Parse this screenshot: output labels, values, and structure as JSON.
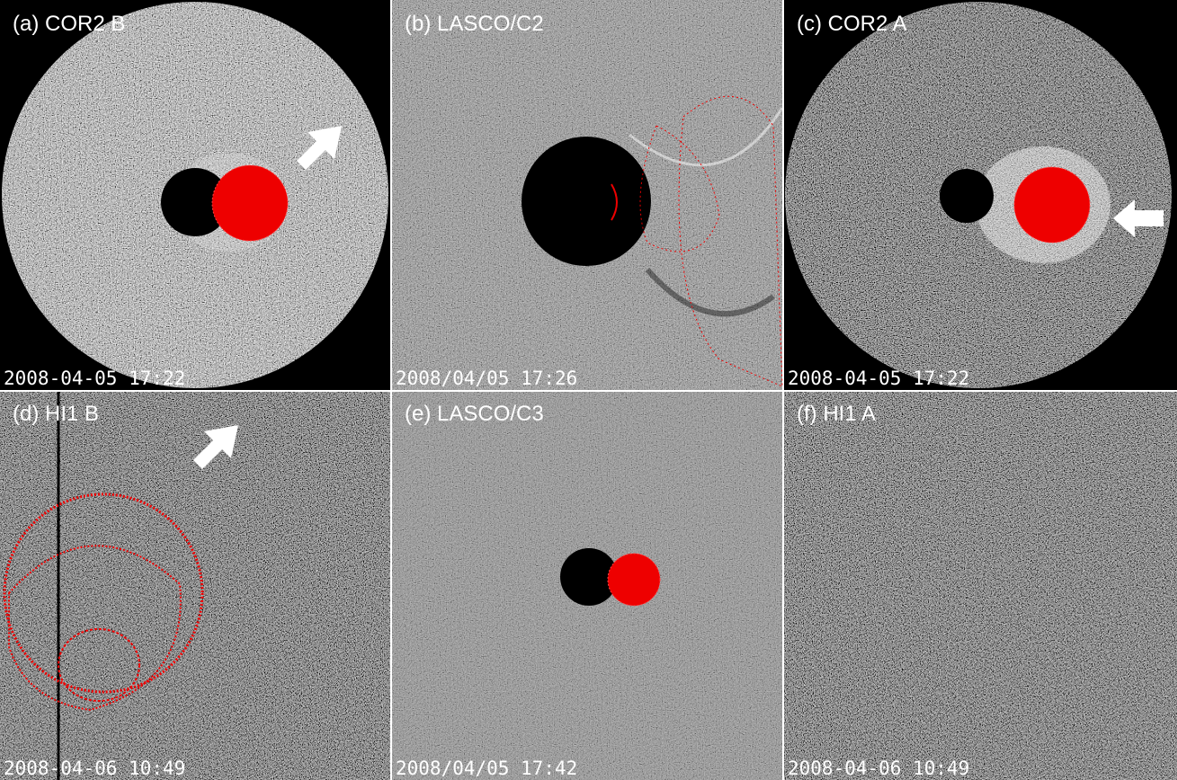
{
  "panels": [
    {
      "label": "(a) COR2 B",
      "timestamp": "2008-04-05 17:22"
    },
    {
      "label": "(b) LASCO/C2",
      "timestamp": "2008/04/05 17:26"
    },
    {
      "label": "(c) COR2 A",
      "timestamp": "2008-04-05 17:22"
    },
    {
      "label": "(d) HI1 B",
      "timestamp": "2008-04-06 10:49"
    },
    {
      "label": "(e) LASCO/C3",
      "timestamp": "2008/04/05 17:42"
    },
    {
      "label": "(f) HI1 A",
      "timestamp": "2008-04-06 10:49"
    }
  ]
}
